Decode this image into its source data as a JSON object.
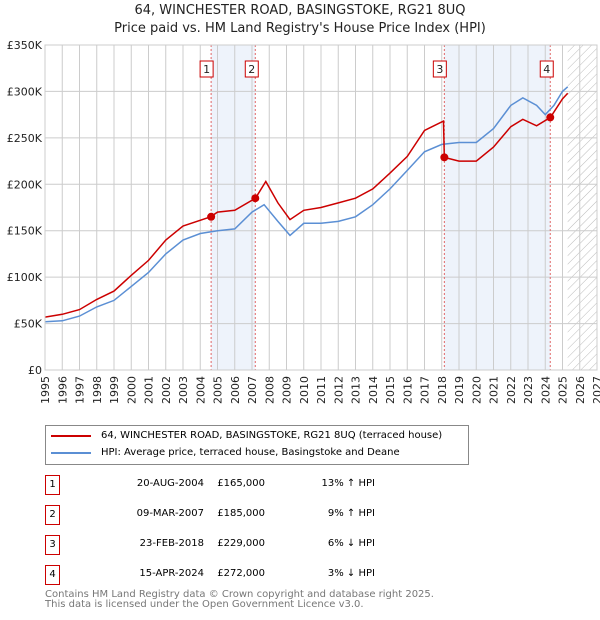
{
  "title": "64, WINCHESTER ROAD, BASINGSTOKE, RG21 8UQ",
  "subtitle": "Price paid vs. HM Land Registry's House Price Index (HPI)",
  "chart_data": {
    "type": "line",
    "title": "64, WINCHESTER ROAD, BASINGSTOKE, RG21 8UQ",
    "xlim": [
      1995,
      2027
    ],
    "ylim": [
      0,
      350000
    ],
    "xticks": [
      "1995",
      "1996",
      "1997",
      "1998",
      "1999",
      "2000",
      "2001",
      "2002",
      "2003",
      "2004",
      "2005",
      "2006",
      "2007",
      "2008",
      "2009",
      "2010",
      "2011",
      "2012",
      "2013",
      "2014",
      "2015",
      "2016",
      "2017",
      "2018",
      "2019",
      "2020",
      "2021",
      "2022",
      "2023",
      "2024",
      "2025",
      "2026",
      "2027"
    ],
    "yticks": [
      {
        "v": 0,
        "label": "£0"
      },
      {
        "v": 50000,
        "label": "£50K"
      },
      {
        "v": 100000,
        "label": "£100K"
      },
      {
        "v": 150000,
        "label": "£150K"
      },
      {
        "v": 200000,
        "label": "£200K"
      },
      {
        "v": 250000,
        "label": "£250K"
      },
      {
        "v": 300000,
        "label": "£300K"
      },
      {
        "v": 350000,
        "label": "£350K"
      }
    ],
    "forecast_start": 2025.3,
    "series": [
      {
        "name": "64, WINCHESTER ROAD, BASINGSTOKE, RG21 8UQ (terraced house)",
        "color": "#cc0000",
        "x": [
          1995,
          1996,
          1997,
          1998,
          1999,
          2000,
          2001,
          2002,
          2003,
          2004.6,
          2005,
          2006,
          2007.2,
          2007.8,
          2008.5,
          2009.2,
          2010,
          2011,
          2012,
          2013,
          2014,
          2015,
          2016,
          2017,
          2018.1,
          2018.15,
          2019,
          2020,
          2021,
          2022,
          2022.7,
          2023.5,
          2024.3,
          2025,
          2025.3
        ],
        "y": [
          57000,
          60000,
          65000,
          76000,
          85000,
          102000,
          118000,
          140000,
          155000,
          165000,
          170000,
          172000,
          185000,
          203000,
          180000,
          162000,
          172000,
          175000,
          180000,
          185000,
          195000,
          212000,
          230000,
          258000,
          268000,
          229000,
          225000,
          225000,
          240000,
          262000,
          270000,
          263000,
          272000,
          292000,
          298000
        ]
      },
      {
        "name": "HPI: Average price, terraced house, Basingstoke and Deane",
        "color": "#5b8fd4",
        "x": [
          1995,
          1996,
          1997,
          1998,
          1999,
          2000,
          2001,
          2002,
          2003,
          2004,
          2005,
          2006,
          2007,
          2007.7,
          2008.5,
          2009.2,
          2010,
          2011,
          2012,
          2013,
          2014,
          2015,
          2016,
          2017,
          2018,
          2019,
          2020,
          2021,
          2022,
          2022.7,
          2023.5,
          2024,
          2024.5,
          2025,
          2025.3
        ],
        "y": [
          52000,
          53000,
          58000,
          68000,
          75000,
          90000,
          105000,
          125000,
          140000,
          147000,
          150000,
          152000,
          170000,
          178000,
          160000,
          145000,
          158000,
          158000,
          160000,
          165000,
          178000,
          195000,
          215000,
          235000,
          243000,
          245000,
          245000,
          260000,
          285000,
          293000,
          285000,
          275000,
          285000,
          300000,
          305000
        ]
      }
    ],
    "sales": [
      {
        "n": "1",
        "date": "20-AUG-2004",
        "x": 2004.63,
        "price": "£165,000",
        "y": 165000,
        "hpi": "13% ↑ HPI"
      },
      {
        "n": "2",
        "date": "09-MAR-2007",
        "x": 2007.19,
        "price": "£185,000",
        "y": 185000,
        "hpi": "9% ↑ HPI"
      },
      {
        "n": "3",
        "date": "23-FEB-2018",
        "x": 2018.15,
        "price": "£229,000",
        "y": 229000,
        "hpi": "6% ↓ HPI"
      },
      {
        "n": "4",
        "date": "15-APR-2024",
        "x": 2024.29,
        "price": "£272,000",
        "y": 272000,
        "hpi": "3% ↓ HPI"
      }
    ]
  },
  "legend": [
    "64, WINCHESTER ROAD, BASINGSTOKE, RG21 8UQ (terraced house)",
    "HPI: Average price, terraced house, Basingstoke and Deane"
  ],
  "footer": [
    "Contains HM Land Registry data © Crown copyright and database right 2025.",
    "This data is licensed under the Open Government Licence v3.0."
  ]
}
